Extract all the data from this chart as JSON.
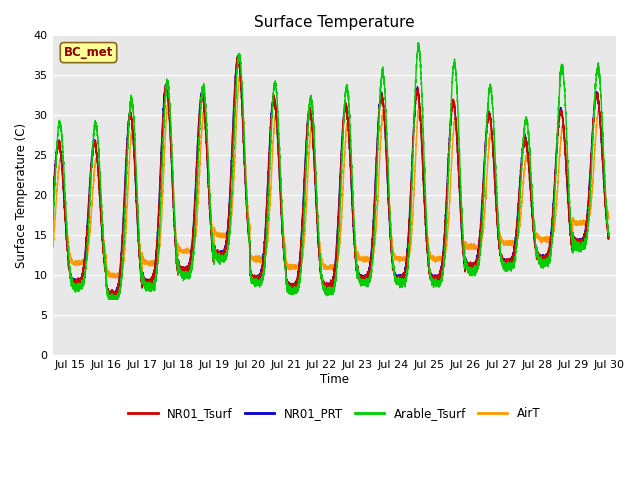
{
  "title": "Surface Temperature",
  "xlabel": "Time",
  "ylabel": "Surface Temperature (C)",
  "ylim": [
    0,
    40
  ],
  "xlim_days": [
    14.5,
    30.2
  ],
  "background_color": "#e8e8e8",
  "fig_background": "#ffffff",
  "annotation_text": "BC_met",
  "annotation_color": "#8b0000",
  "annotation_bg": "#ffff99",
  "legend_entries": [
    "NR01_Tsurf",
    "NR01_PRT",
    "Arable_Tsurf",
    "AirT"
  ],
  "line_colors": [
    "#cc0000",
    "#0000cc",
    "#00cc00",
    "#ff9900"
  ],
  "yticks": [
    0,
    5,
    10,
    15,
    20,
    25,
    30,
    35,
    40
  ],
  "xtick_labels": [
    "Jul 15",
    "Jul 16",
    "Jul 17",
    "Jul 18",
    "Jul 19",
    "Jul 20",
    "Jul 21",
    "Jul 22",
    "Jul 23",
    "Jul 24",
    "Jul 25",
    "Jul 26",
    "Jul 27",
    "Jul 28",
    "Jul 29",
    "Jul 30"
  ],
  "xtick_positions": [
    15,
    16,
    17,
    18,
    19,
    20,
    21,
    22,
    23,
    24,
    25,
    26,
    27,
    28,
    29,
    30
  ]
}
